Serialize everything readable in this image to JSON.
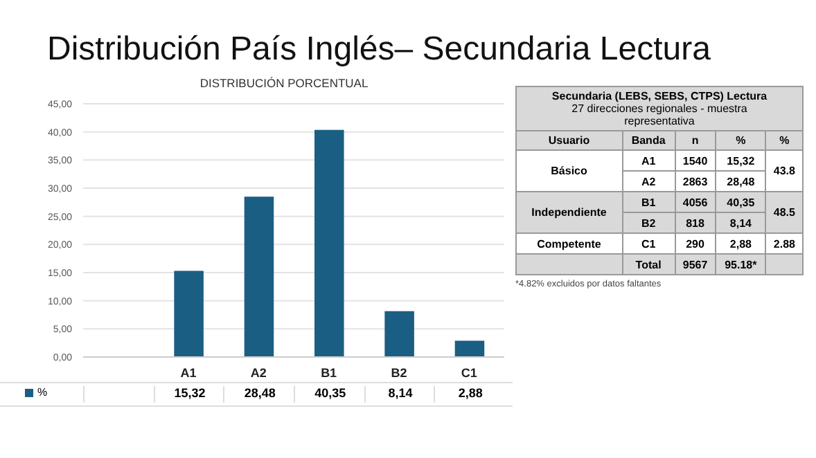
{
  "chart_data": [
    {
      "type": "bar",
      "title": "Distribución País Inglés– Secundaria Lectura",
      "subtitle": "DISTRIBUCIÓN PORCENTUAL",
      "categories": [
        null,
        "A1",
        "A2",
        "B1",
        "B2",
        "C1"
      ],
      "series": [
        {
          "name": "%",
          "color": "#1b5e83",
          "values": [
            null,
            15.32,
            28.48,
            40.35,
            8.14,
            2.88
          ],
          "value_labels": [
            null,
            "15,32",
            "28,48",
            "40,35",
            "8,14",
            "2,88"
          ]
        }
      ],
      "ylim": [
        0,
        45
      ],
      "yticks": [
        {
          "value": 0,
          "label": "0,00"
        },
        {
          "value": 5,
          "label": "5,00"
        },
        {
          "value": 10,
          "label": "10,00"
        },
        {
          "value": 15,
          "label": "15,00"
        },
        {
          "value": 20,
          "label": "20,00"
        },
        {
          "value": 25,
          "label": "25,00"
        },
        {
          "value": 30,
          "label": "30,00"
        },
        {
          "value": 35,
          "label": "35,00"
        },
        {
          "value": 40,
          "label": "40,00"
        },
        {
          "value": 45,
          "label": "45,00"
        }
      ],
      "grid": "y",
      "legend": "bottom"
    },
    {
      "type": "other",
      "title": "Secundaria (LEBS, SEBS, CTPS) Lectura",
      "subtitle": "27 direcciones regionales - muestra representativa",
      "categories": [
        "Usuario",
        "Banda",
        "n",
        "%",
        "%"
      ],
      "cell_labels": [
        [
          "Básico",
          "A1",
          "1540",
          "15,32",
          "43.8"
        ],
        [
          null,
          "A2",
          "2863",
          "28,48",
          null
        ],
        [
          "Independiente",
          "B1",
          "4056",
          "40,35",
          "48.5"
        ],
        [
          null,
          "B2",
          "818",
          "8,14",
          null
        ],
        [
          "Competente",
          "C1",
          "290",
          "2,88",
          "2.88"
        ],
        [
          null,
          "Total",
          "9567",
          "95.18*",
          null
        ]
      ],
      "annotations": [
        "*4.82% excluidos por datos faltantes"
      ]
    }
  ]
}
